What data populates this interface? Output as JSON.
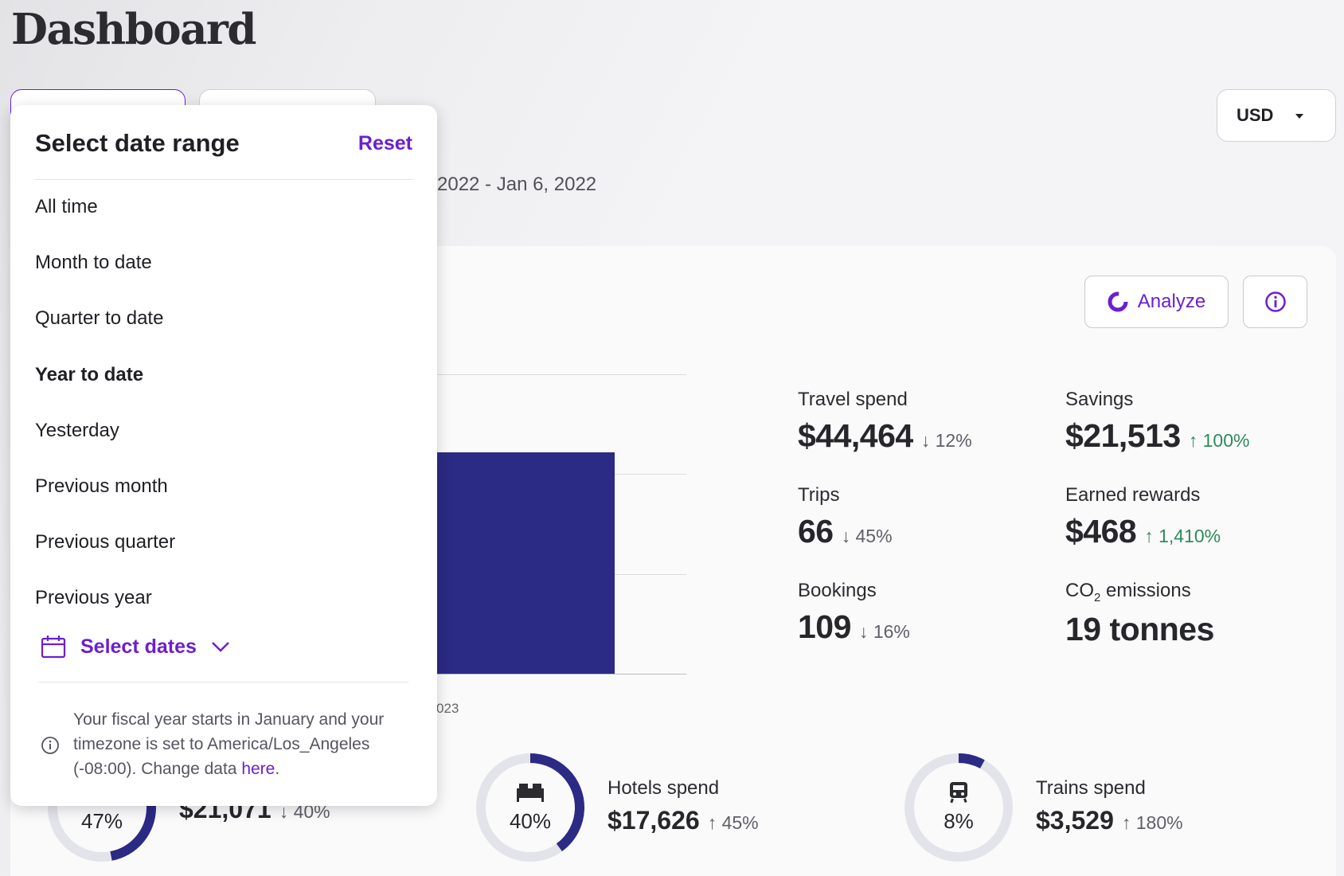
{
  "page": {
    "title": "Dashboard"
  },
  "currency": {
    "value": "USD"
  },
  "date_range_display": "2022 - Jan 6, 2022",
  "actions": {
    "analyze_label": "Analyze"
  },
  "chart": {
    "axis_label": "023"
  },
  "stats": [
    {
      "label": "Travel spend",
      "value": "$44,464",
      "change": "12%",
      "direction": "down",
      "arrow": "↓"
    },
    {
      "label": "Savings",
      "value": "$21,513",
      "change": "100%",
      "direction": "up",
      "arrow": "↑"
    },
    {
      "label": "Trips",
      "value": "66",
      "change": "45%",
      "direction": "down",
      "arrow": "↓"
    },
    {
      "label": "Earned rewards",
      "value": "$468",
      "change": "1,410%",
      "direction": "up",
      "arrow": "↑"
    },
    {
      "label_prefix": "CO",
      "label_sub": "2",
      "label_suffix": " emissions",
      "value": "19 tonnes"
    },
    {
      "label": "Bookings",
      "value": "109",
      "change": "16%",
      "direction": "down",
      "arrow": "↓"
    }
  ],
  "breakdown": [
    {
      "pct": "47%",
      "value": "$21,071",
      "change": "40%",
      "arrow": "↓",
      "fraction": 0.47
    },
    {
      "label": "Hotels spend",
      "pct": "40%",
      "value": "$17,626",
      "change": "45%",
      "arrow": "↑",
      "fraction": 0.4,
      "icon": "bed-icon"
    },
    {
      "label": "Trains spend",
      "pct": "8%",
      "value": "$3,529",
      "change": "180%",
      "arrow": "↑",
      "fraction": 0.08,
      "icon": "train-icon"
    }
  ],
  "date_dropdown": {
    "title": "Select date range",
    "reset_label": "Reset",
    "options": [
      "All time",
      "Month to date",
      "Quarter to date",
      "Year to date",
      "Yesterday",
      "Previous month",
      "Previous quarter",
      "Previous year"
    ],
    "selected": "Year to date",
    "select_dates_label": "Select dates",
    "note_text": "Your fiscal year starts in January and your timezone is set to America/Los_Angeles (-08:00). Change data ",
    "note_link": "here",
    "note_end": "."
  },
  "colors": {
    "accent": "#6b1fd1",
    "bar": "#2b2a85",
    "up": "#2f8a5a",
    "donut_track": "#e3e3ea"
  }
}
